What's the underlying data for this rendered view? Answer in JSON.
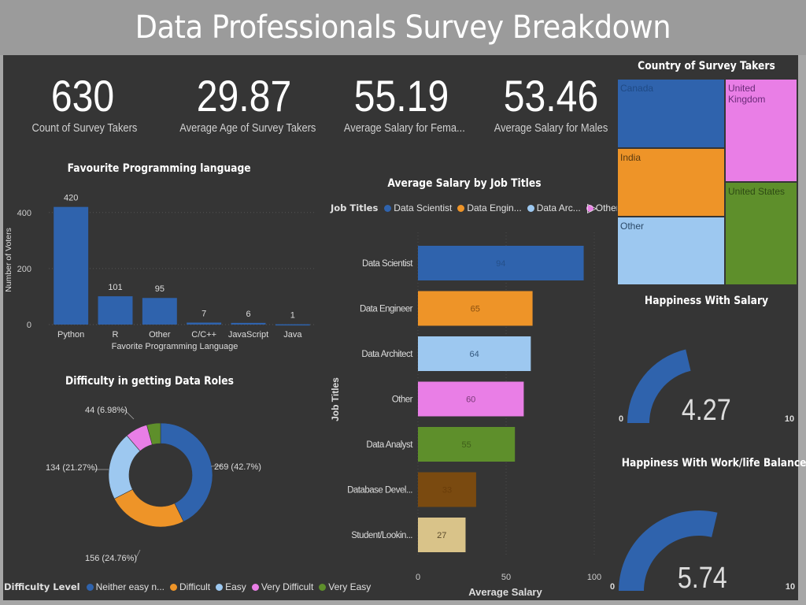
{
  "title": "Data Professionals Survey Breakdown",
  "kpis": [
    {
      "value": "630",
      "label": "Count of Survey Takers"
    },
    {
      "value": "29.87",
      "label": "Average Age of Survey Takers"
    },
    {
      "value": "55.19",
      "label": "Average Salary for Fema..."
    },
    {
      "value": "53.46",
      "label": "Average Salary for Males"
    }
  ],
  "colors": {
    "blue": "#2f63ad",
    "orange": "#ee9428",
    "lightblue": "#9dc8f0",
    "pink": "#e97ee6",
    "green": "#5e8f2b",
    "brown": "#7a4a10",
    "tan": "#d9c389",
    "background": "#353535",
    "titlebar": "#9b9b9b"
  },
  "chart_data": [
    {
      "id": "programming",
      "type": "bar",
      "title": "Favourite Programming language",
      "xlabel": "Favorite Programming Language",
      "ylabel": "Number of Voters",
      "categories": [
        "Python",
        "R",
        "Other",
        "C/C++",
        "JavaScript",
        "Java"
      ],
      "values": [
        420,
        101,
        95,
        7,
        6,
        1
      ],
      "data_labels": [
        "420",
        "101",
        "95",
        "7",
        "6",
        "1"
      ],
      "yticks": [
        "0",
        "200",
        "400"
      ],
      "ytick_values": [
        0,
        200,
        400
      ],
      "ylim": [
        0,
        450
      ],
      "grid": true
    },
    {
      "id": "difficulty",
      "type": "pie",
      "donut": true,
      "title": "Difficulty in getting Data Roles",
      "legend_title": "Difficulty Level",
      "categories": [
        "Neither easy n...",
        "Difficult",
        "Easy",
        "Very Difficult",
        "Very Easy"
      ],
      "values": [
        269,
        156,
        134,
        44,
        27
      ],
      "data_labels": [
        "269 (42.7%)",
        "156 (24.76%)",
        "134 (21.27%)",
        "44 (6.98%)",
        ""
      ],
      "legend_position": "bottom"
    },
    {
      "id": "salary",
      "type": "bar",
      "orientation": "horizontal",
      "title": "Average Salary by Job Titles",
      "legend_title": "Job Titles",
      "legend_items": [
        "Data Scientist",
        "Data Engin...",
        "Data Arc...",
        "Other"
      ],
      "legend_position": "top",
      "xlabel": "Average Salary",
      "ylabel": "Job Titles",
      "categories": [
        "Data Scientist",
        "Data Engineer",
        "Data Architect",
        "Other",
        "Data Analyst",
        "Database Devel...",
        "Student/Lookin..."
      ],
      "values": [
        94,
        65,
        64,
        60,
        55,
        33,
        27
      ],
      "data_labels": [
        "94",
        "65",
        "64",
        "60",
        "55",
        "33",
        "27"
      ],
      "xticks": [
        "0",
        "50",
        "100"
      ],
      "xtick_values": [
        0,
        50,
        100
      ],
      "xlim": [
        0,
        100
      ]
    },
    {
      "id": "country",
      "type": "treemap",
      "title": "Country of Survey Takers",
      "categories": [
        "Canada",
        "India",
        "Other",
        "United Kingdom",
        "United States"
      ]
    },
    {
      "id": "gauge_salary",
      "type": "gauge",
      "title": "Happiness With Salary",
      "value": 4.27,
      "value_label": "4.27",
      "min": 0,
      "max": 10,
      "min_label": "0",
      "max_label": "10"
    },
    {
      "id": "gauge_worklife",
      "type": "gauge",
      "title": "Happiness With Work/life Balance",
      "value": 5.74,
      "value_label": "5.74",
      "min": 0,
      "max": 10,
      "min_label": "0",
      "max_label": "10"
    }
  ]
}
